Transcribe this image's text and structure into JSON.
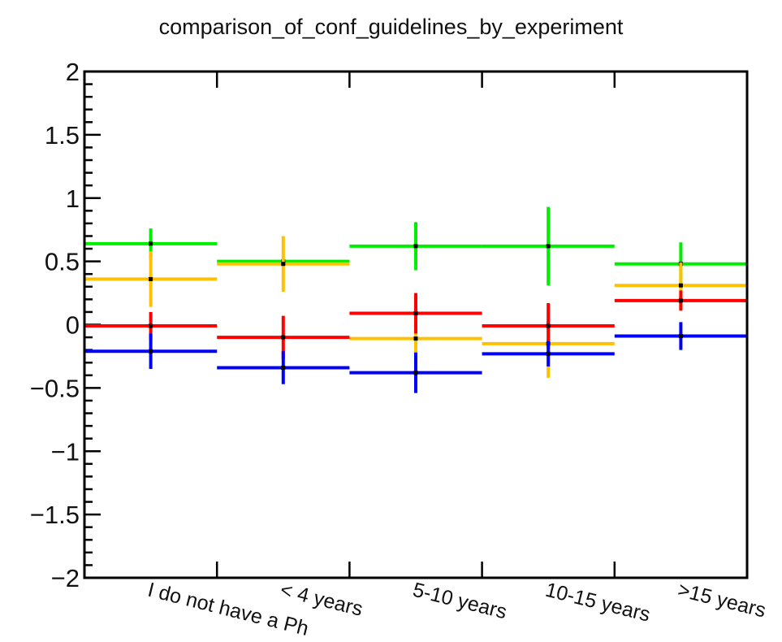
{
  "chart_data": {
    "type": "scatter",
    "title": "comparison_of_conf_guidelines_by_experiment",
    "xlabel": "",
    "ylabel": "",
    "categories": [
      "I do not have a Ph",
      "< 4 years",
      "5-10 years",
      "10-15 years",
      ">15 years"
    ],
    "ylim": [
      -2,
      2
    ],
    "yticks": [
      -2,
      -1.5,
      -1,
      -0.5,
      0,
      0.5,
      1,
      1.5,
      2
    ],
    "ytick_labels": [
      "−2",
      "−1.5",
      "−1",
      "−0.5",
      "0",
      "0.5",
      "1",
      "1.5",
      "2"
    ],
    "grid": false,
    "legend": "none",
    "series": [
      {
        "color": "#00ee00",
        "values": [
          0.64,
          0.5,
          0.62,
          0.62,
          0.48
        ],
        "errors": [
          0.12,
          0.02,
          0.19,
          0.31,
          0.17
        ]
      },
      {
        "color": "#ffc000",
        "values": [
          0.36,
          0.48,
          -0.11,
          -0.15,
          0.31
        ],
        "errors": [
          0.22,
          0.22,
          0.3,
          0.27,
          0.18
        ]
      },
      {
        "color": "#ff0000",
        "values": [
          -0.01,
          -0.1,
          0.09,
          -0.01,
          0.19
        ],
        "errors": [
          0.11,
          0.17,
          0.16,
          0.18,
          0.08
        ]
      },
      {
        "color": "#0000ff",
        "values": [
          -0.21,
          -0.34,
          -0.38,
          -0.23,
          -0.09
        ],
        "errors": [
          0.14,
          0.13,
          0.16,
          0.1,
          0.11
        ]
      }
    ]
  }
}
